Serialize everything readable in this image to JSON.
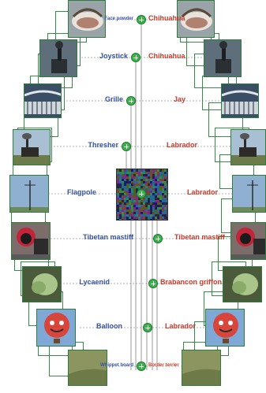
{
  "rows": [
    {
      "left": "Face powder",
      "right": "Chihuahua",
      "small": true
    },
    {
      "left": "Joystick",
      "right": "Chihuahua"
    },
    {
      "left": "Grille",
      "right": "Jay"
    },
    {
      "left": "Thresher",
      "right": "Labrador"
    },
    {
      "left": "Flagpole",
      "right": "Labrador"
    },
    {
      "left": "Tibetan mastiff",
      "right": "Tibetan mastiff"
    },
    {
      "left": "Lycaenid",
      "right": "Brabancon griffon"
    },
    {
      "left": "Balloon",
      "right": "Labrador"
    },
    {
      "left": "Whippet board",
      "right": "Border terrier",
      "small": true
    }
  ],
  "images": [
    {
      "name": "face-powder-image",
      "subject": "face powder compact"
    },
    {
      "name": "joystick-image",
      "subject": "joystick"
    },
    {
      "name": "grille-image",
      "subject": "car grille"
    },
    {
      "name": "thresher-image",
      "subject": "thresher"
    },
    {
      "name": "flagpole-image",
      "subject": "flagpole"
    },
    {
      "name": "tibetan-mastiff-image",
      "subject": "tibetan mastiff dog"
    },
    {
      "name": "lycaenid-image",
      "subject": "lycaenid butterfly"
    },
    {
      "name": "balloon-image",
      "subject": "hot air balloon"
    },
    {
      "name": "whippet-board-image",
      "subject": "whippet board"
    }
  ],
  "colors": {
    "left_label": "#3553a6",
    "right_label": "#cc3a2b",
    "frame": "#3a8a4a",
    "node": "#3cb34a",
    "dotted_line": "#9a9a9a",
    "trunk_line": "#7f7f7f"
  }
}
